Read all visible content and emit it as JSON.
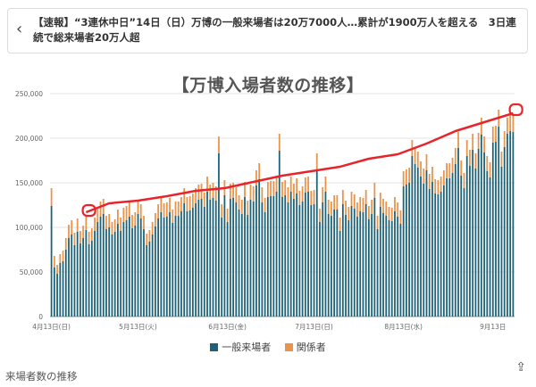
{
  "header": {
    "back_icon": "chevron-left-icon",
    "headline": "【速報】“3連休中日”14日（日）万博の一般来場者は20万7000人…累計が1900万人を超える　3日連続で総来場者20万人超"
  },
  "chart_data": {
    "type": "bar",
    "stacked": true,
    "title": "【万博入場者数の推移】",
    "ylim": [
      0,
      250000
    ],
    "yticks": [
      "0",
      "50,000",
      "100,000",
      "150,000",
      "200,000",
      "250,000"
    ],
    "ytick_values": [
      0,
      50000,
      100000,
      150000,
      200000,
      250000
    ],
    "xtick_labels": [
      "4月13日(日)",
      "5月13日(火)",
      "6月13日(金)",
      "7月13日(日)",
      "8月13日(水)",
      "9月13日"
    ],
    "xtick_index": [
      0,
      30,
      61,
      91,
      122,
      153
    ],
    "series": [
      {
        "name": "一般来場者",
        "color": "#1e6278",
        "values": [
          124000,
          55000,
          48000,
          60000,
          62000,
          75000,
          88000,
          92000,
          80000,
          95000,
          82000,
          88000,
          97000,
          81000,
          85000,
          96000,
          106000,
          112000,
          115000,
          98000,
          100000,
          92000,
          95000,
          104000,
          96000,
          106000,
          108000,
          112000,
          99000,
          102000,
          115000,
          110000,
          98000,
          80000,
          84000,
          92000,
          101000,
          110000,
          117000,
          111000,
          112000,
          117000,
          105000,
          113000,
          113000,
          118000,
          127000,
          118000,
          119000,
          122000,
          127000,
          131000,
          132000,
          123000,
          140000,
          131000,
          133000,
          130000,
          183000,
          111000,
          136000,
          106000,
          132000,
          133000,
          128000,
          120000,
          115000,
          134000,
          114000,
          131000,
          129000,
          147000,
          154000,
          128000,
          117000,
          134000,
          135000,
          135000,
          140000,
          186000,
          134000,
          136000,
          128000,
          140000,
          132000,
          138000,
          125000,
          129000,
          139000,
          140000,
          125000,
          126000,
          165000,
          106000,
          128000,
          140000,
          115000,
          113000,
          120000,
          120000,
          96000,
          126000,
          114000,
          108000,
          124000,
          121000,
          112000,
          118000,
          117000,
          126000,
          109000,
          115000,
          133000,
          98000,
          123000,
          116000,
          113000,
          108000,
          107000,
          118000,
          112000,
          104000,
          146000,
          148000,
          150000,
          180000,
          171000,
          167000,
          157000,
          149000,
          164000,
          143000,
          151000,
          138000,
          137000,
          140000,
          147000,
          155000,
          155000,
          161000,
          171000,
          189000,
          158000,
          144000,
          180000,
          169000,
          187000,
          166000,
          188000,
          204000,
          184000,
          163000,
          156000,
          195000,
          196000,
          213000,
          168000,
          190000,
          205000,
          208000,
          207000
        ],
        "values_note": ""
      },
      {
        "name": "関係者",
        "color": "#e8944a",
        "values": [
          20000,
          13000,
          10000,
          10000,
          12000,
          13000,
          15000,
          16000,
          14000,
          15000,
          14000,
          14000,
          15000,
          14000,
          14000,
          15000,
          16000,
          17000,
          17000,
          15000,
          15000,
          14000,
          14000,
          16000,
          15000,
          16000,
          16000,
          17000,
          15000,
          15000,
          16000,
          16000,
          15000,
          13000,
          13000,
          14000,
          15000,
          16000,
          16000,
          16000,
          16000,
          16000,
          15000,
          16000,
          16000,
          16000,
          17000,
          16000,
          16000,
          16000,
          17000,
          17000,
          17000,
          16000,
          17000,
          17000,
          17000,
          16000,
          19000,
          15000,
          17000,
          15000,
          17000,
          17000,
          17000,
          16000,
          16000,
          17000,
          16000,
          17000,
          17000,
          17000,
          18000,
          17000,
          16000,
          17000,
          17000,
          17000,
          17000,
          19000,
          17000,
          17000,
          17000,
          17000,
          17000,
          17000,
          16000,
          17000,
          17000,
          17000,
          16000,
          16000,
          18000,
          15000,
          17000,
          17000,
          16000,
          16000,
          16000,
          16000,
          15000,
          16000,
          16000,
          15000,
          16000,
          16000,
          16000,
          16000,
          16000,
          16000,
          15000,
          16000,
          17000,
          15000,
          16000,
          16000,
          16000,
          15000,
          15000,
          16000,
          16000,
          15000,
          17000,
          17000,
          17000,
          18000,
          18000,
          18000,
          17000,
          17000,
          18000,
          17000,
          17000,
          16000,
          16000,
          17000,
          17000,
          17000,
          17000,
          17000,
          18000,
          18000,
          17000,
          17000,
          18000,
          18000,
          18000,
          17000,
          18000,
          19000,
          18000,
          17000,
          17000,
          18000,
          18000,
          19000,
          17000,
          18000,
          18000,
          19000,
          19000
        ]
      }
    ],
    "cumulative_line": {
      "color": "#e8242a",
      "x_index": [
        12,
        20,
        30,
        40,
        50,
        60,
        70,
        80,
        90,
        100,
        110,
        120,
        130,
        140,
        150,
        160
      ],
      "y": [
        117000,
        127000,
        130000,
        135000,
        141000,
        144000,
        151000,
        158000,
        163000,
        168000,
        177000,
        182000,
        194000,
        208000,
        218000,
        228000
      ]
    },
    "circle_marks": [
      {
        "x_index": 13,
        "y": 119000
      },
      {
        "x_index": 161,
        "y": 232000
      }
    ]
  },
  "legend": {
    "general": "一般来場者",
    "staff": "関係者"
  },
  "caption": "来場者数の推移",
  "share_icon": "share-icon"
}
